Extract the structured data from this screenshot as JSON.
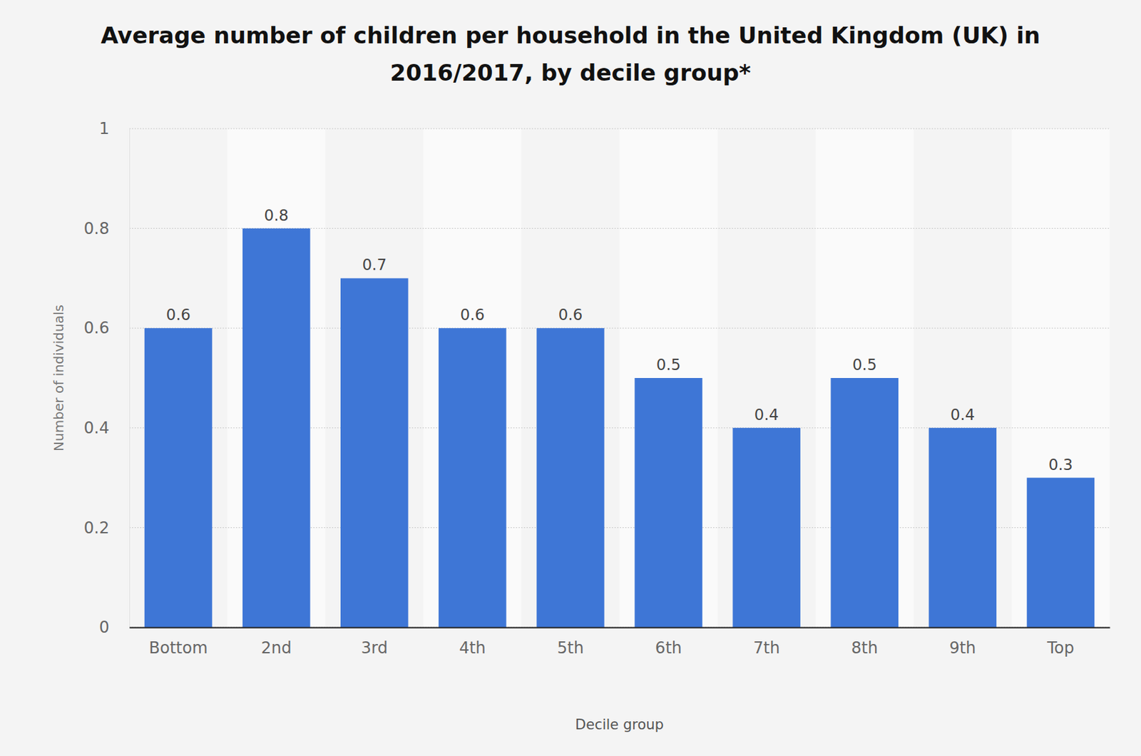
{
  "chart_data": {
    "type": "bar",
    "title": "Average number of children per household in the United Kingdom (UK) in 2016/2017, by decile group*",
    "x_label": "Decile group",
    "y_label": "Number of individuals",
    "categories": [
      "Bottom",
      "2nd",
      "3rd",
      "4th",
      "5th",
      "6th",
      "7th",
      "8th",
      "9th",
      "Top"
    ],
    "values": [
      0.6,
      0.8,
      0.7,
      0.6,
      0.6,
      0.5,
      0.4,
      0.5,
      0.4,
      0.3
    ],
    "color": "#3e76d6",
    "ylim": [
      0,
      1
    ],
    "yticks": [
      0,
      0.2,
      0.4,
      0.6,
      0.8,
      1
    ],
    "grid": true,
    "data_labels": true
  }
}
